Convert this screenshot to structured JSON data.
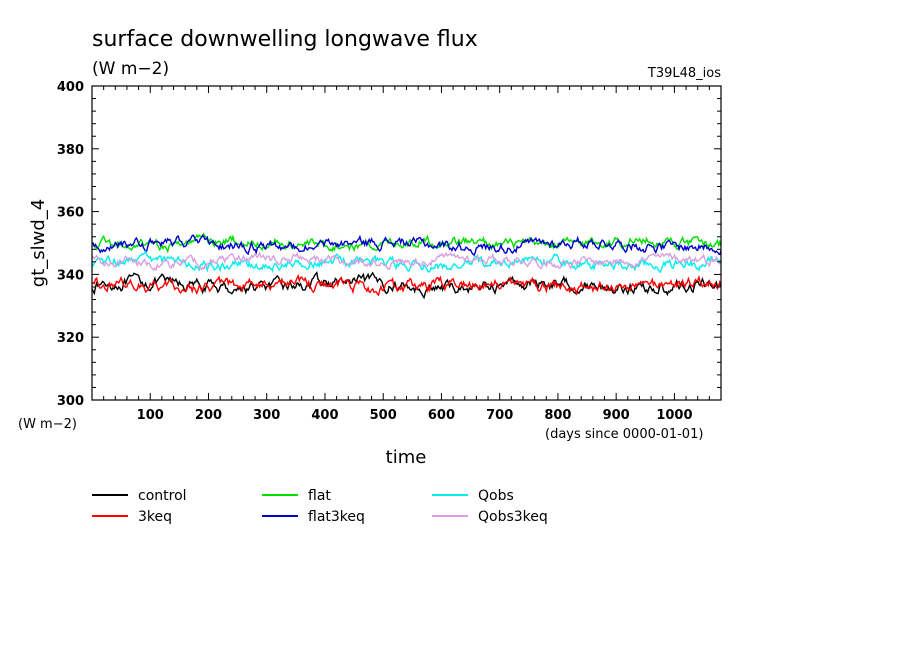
{
  "chart_data": {
    "type": "line",
    "title": "surface downwelling longwave flux",
    "units": "(W m−2)",
    "tag": "T39L48_ios",
    "ylabel": "gt_slwd_4",
    "yunits": "(W m−2)",
    "xlabel": "time",
    "xunits": "(days since 0000-01-01)",
    "xlim": [
      0,
      1080
    ],
    "ylim": [
      300,
      400
    ],
    "xticks": [
      100,
      200,
      300,
      400,
      500,
      600,
      700,
      800,
      900,
      1000
    ],
    "yticks": [
      300,
      320,
      340,
      360,
      380,
      400
    ],
    "grid": false,
    "legend_position": "bottom",
    "series": [
      {
        "name": "control",
        "color": "#000000",
        "mean": 336.5,
        "amp": 2.0
      },
      {
        "name": "3keq",
        "color": "#ff0000",
        "mean": 336.5,
        "amp": 2.0
      },
      {
        "name": "flat",
        "color": "#00dd00",
        "mean": 350.0,
        "amp": 1.8
      },
      {
        "name": "flat3keq",
        "color": "#0000cc",
        "mean": 349.5,
        "amp": 1.8
      },
      {
        "name": "Qobs",
        "color": "#00eeee",
        "mean": 343.5,
        "amp": 1.8
      },
      {
        "name": "Qobs3keq",
        "color": "#d8a0e0",
        "mean": 344.5,
        "amp": 1.6
      }
    ]
  }
}
